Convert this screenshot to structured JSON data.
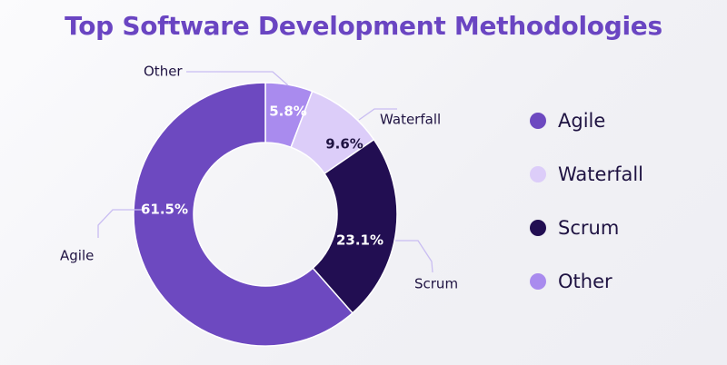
{
  "title": "Top Software Development Methodologies",
  "chart_data": {
    "type": "pie",
    "variant": "donut",
    "title": "Top Software Development Methodologies",
    "unit": "%",
    "categories": [
      "Agile",
      "Waterfall",
      "Scrum",
      "Other"
    ],
    "values": [
      61.5,
      9.6,
      23.1,
      5.8
    ],
    "value_labels": [
      "61.5%",
      "9.6%",
      "23.1%",
      "5.8%"
    ],
    "colors": [
      "#6d49c0",
      "#dccdf9",
      "#220e52",
      "#a98bee"
    ],
    "legend_position": "right"
  },
  "legend": {
    "items": [
      {
        "label": "Agile",
        "color": "#6d49c0"
      },
      {
        "label": "Waterfall",
        "color": "#dccdf9"
      },
      {
        "label": "Scrum",
        "color": "#220e52"
      },
      {
        "label": "Other",
        "color": "#a98bee"
      }
    ]
  }
}
